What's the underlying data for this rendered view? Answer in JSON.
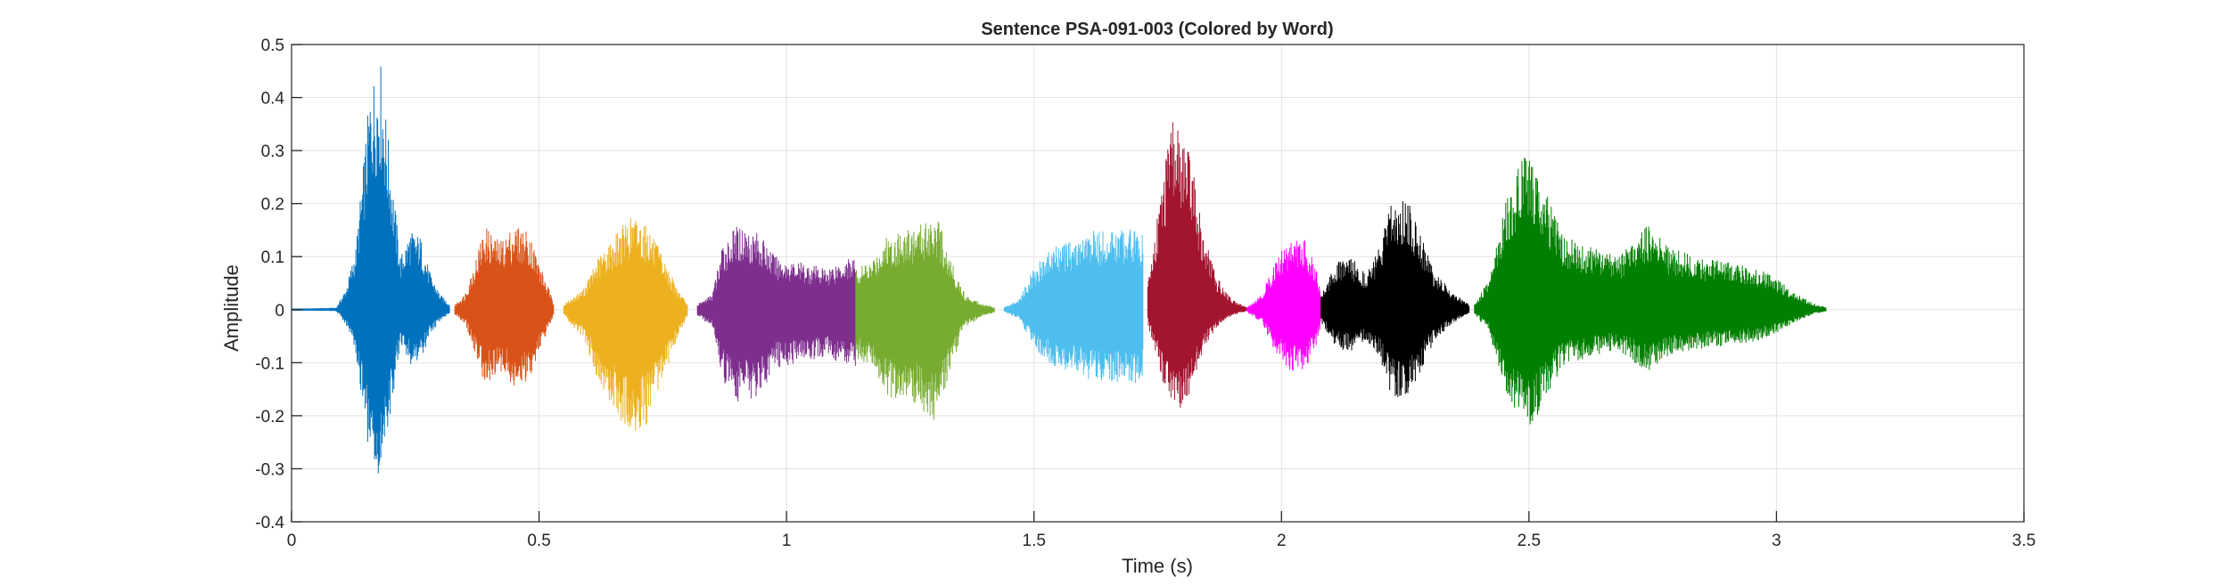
{
  "chart_data": {
    "type": "line",
    "title": "Sentence PSA-091-003 (Colored by Word)",
    "xlabel": "Time (s)",
    "ylabel": "Amplitude",
    "xlim": [
      0,
      3.5
    ],
    "ylim": [
      -0.4,
      0.5
    ],
    "xticks": [
      0,
      0.5,
      1,
      1.5,
      2,
      2.5,
      3,
      3.5
    ],
    "xtick_labels": [
      "0",
      "0.5",
      "1",
      "1.5",
      "2",
      "2.5",
      "3",
      "3.5"
    ],
    "yticks": [
      -0.4,
      -0.3,
      -0.2,
      -0.1,
      0,
      0.1,
      0.2,
      0.3,
      0.4,
      0.5
    ],
    "ytick_labels": [
      "-0.4",
      "-0.3",
      "-0.2",
      "-0.1",
      "0",
      "0.1",
      "0.2",
      "0.3",
      "0.4",
      "0.5"
    ],
    "grid": true,
    "series": [
      {
        "color": "#0072BD",
        "start": 0.0,
        "end": 0.32,
        "envelope": [
          [
            0.0,
            0.002
          ],
          [
            0.09,
            0.004
          ],
          [
            0.11,
            0.04
          ],
          [
            0.13,
            0.12
          ],
          [
            0.16,
            0.43
          ],
          [
            0.18,
            0.47
          ],
          [
            0.2,
            0.28
          ],
          [
            0.22,
            0.1
          ],
          [
            0.24,
            0.15
          ],
          [
            0.26,
            0.14
          ],
          [
            0.28,
            0.07
          ],
          [
            0.3,
            0.03
          ],
          [
            0.32,
            0.01
          ]
        ],
        "neg_scale": 0.7
      },
      {
        "color": "#D95319",
        "start": 0.33,
        "end": 0.53,
        "envelope": [
          [
            0.33,
            0.01
          ],
          [
            0.35,
            0.03
          ],
          [
            0.37,
            0.09
          ],
          [
            0.39,
            0.16
          ],
          [
            0.42,
            0.13
          ],
          [
            0.45,
            0.16
          ],
          [
            0.48,
            0.15
          ],
          [
            0.5,
            0.09
          ],
          [
            0.52,
            0.04
          ],
          [
            0.53,
            0.01
          ]
        ],
        "neg_scale": 0.9
      },
      {
        "color": "#EDB120",
        "start": 0.55,
        "end": 0.8,
        "envelope": [
          [
            0.55,
            0.01
          ],
          [
            0.59,
            0.04
          ],
          [
            0.62,
            0.1
          ],
          [
            0.66,
            0.15
          ],
          [
            0.69,
            0.18
          ],
          [
            0.72,
            0.16
          ],
          [
            0.75,
            0.1
          ],
          [
            0.78,
            0.04
          ],
          [
            0.8,
            0.01
          ]
        ],
        "neg_scale": 1.35
      },
      {
        "color": "#7E2F8E",
        "start": 0.82,
        "end": 1.14,
        "envelope": [
          [
            0.82,
            0.01
          ],
          [
            0.85,
            0.03
          ],
          [
            0.87,
            0.12
          ],
          [
            0.9,
            0.16
          ],
          [
            0.94,
            0.15
          ],
          [
            0.98,
            0.1
          ],
          [
            1.03,
            0.09
          ],
          [
            1.08,
            0.08
          ],
          [
            1.12,
            0.1
          ],
          [
            1.14,
            0.1
          ]
        ],
        "neg_scale": 1.1
      },
      {
        "color": "#77AC30",
        "start": 1.14,
        "end": 1.42,
        "envelope": [
          [
            1.14,
            0.08
          ],
          [
            1.17,
            0.09
          ],
          [
            1.2,
            0.14
          ],
          [
            1.23,
            0.15
          ],
          [
            1.27,
            0.16
          ],
          [
            1.3,
            0.19
          ],
          [
            1.33,
            0.1
          ],
          [
            1.36,
            0.03
          ],
          [
            1.4,
            0.01
          ],
          [
            1.42,
            0.005
          ]
        ],
        "neg_scale": 1.15
      },
      {
        "color": "#4DBEEE",
        "start": 1.44,
        "end": 1.72,
        "envelope": [
          [
            1.44,
            0.005
          ],
          [
            1.47,
            0.02
          ],
          [
            1.5,
            0.08
          ],
          [
            1.54,
            0.12
          ],
          [
            1.58,
            0.13
          ],
          [
            1.62,
            0.15
          ],
          [
            1.66,
            0.15
          ],
          [
            1.7,
            0.16
          ],
          [
            1.72,
            0.14
          ]
        ],
        "neg_scale": 0.9
      },
      {
        "color": "#A2142F",
        "start": 1.73,
        "end": 1.93,
        "envelope": [
          [
            1.73,
            0.05
          ],
          [
            1.76,
            0.25
          ],
          [
            1.78,
            0.36
          ],
          [
            1.8,
            0.33
          ],
          [
            1.82,
            0.28
          ],
          [
            1.84,
            0.15
          ],
          [
            1.87,
            0.06
          ],
          [
            1.9,
            0.02
          ],
          [
            1.93,
            0.005
          ]
        ],
        "neg_scale": 0.55
      },
      {
        "color": "#FF00FF",
        "start": 1.93,
        "end": 2.08,
        "envelope": [
          [
            1.93,
            0.005
          ],
          [
            1.96,
            0.03
          ],
          [
            1.99,
            0.1
          ],
          [
            2.02,
            0.14
          ],
          [
            2.05,
            0.13
          ],
          [
            2.07,
            0.08
          ],
          [
            2.08,
            0.04
          ]
        ],
        "neg_scale": 0.85
      },
      {
        "color": "#000000",
        "start": 2.08,
        "end": 2.38,
        "envelope": [
          [
            2.08,
            0.03
          ],
          [
            2.11,
            0.09
          ],
          [
            2.14,
            0.1
          ],
          [
            2.17,
            0.07
          ],
          [
            2.2,
            0.12
          ],
          [
            2.22,
            0.2
          ],
          [
            2.25,
            0.22
          ],
          [
            2.28,
            0.15
          ],
          [
            2.31,
            0.07
          ],
          [
            2.35,
            0.03
          ],
          [
            2.38,
            0.01
          ]
        ],
        "neg_scale": 0.8
      },
      {
        "color": "#008000",
        "start": 2.39,
        "end": 3.1,
        "envelope": [
          [
            2.39,
            0.01
          ],
          [
            2.42,
            0.06
          ],
          [
            2.45,
            0.2
          ],
          [
            2.48,
            0.28
          ],
          [
            2.5,
            0.32
          ],
          [
            2.53,
            0.23
          ],
          [
            2.57,
            0.14
          ],
          [
            2.62,
            0.12
          ],
          [
            2.68,
            0.1
          ],
          [
            2.74,
            0.16
          ],
          [
            2.78,
            0.12
          ],
          [
            2.84,
            0.1
          ],
          [
            2.9,
            0.09
          ],
          [
            2.96,
            0.08
          ],
          [
            3.0,
            0.06
          ],
          [
            3.04,
            0.03
          ],
          [
            3.08,
            0.01
          ],
          [
            3.1,
            0.005
          ]
        ],
        "neg_scale": 0.75
      }
    ]
  }
}
